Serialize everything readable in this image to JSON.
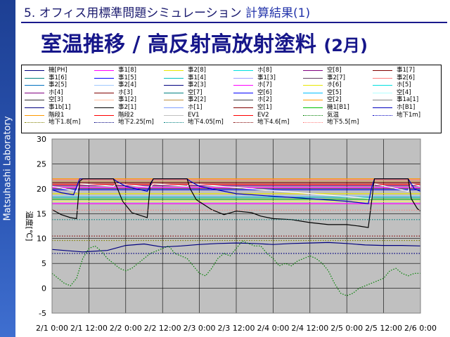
{
  "sidebar": {
    "label": "Matsuhashi Laboratory"
  },
  "header": {
    "number": "5.",
    "section": "オフィス用標準問題シミュレーション",
    "subsection": "計算結果(1)"
  },
  "page_title": {
    "main": "室温推移 / 高反射高放射塗料",
    "sub": "(2月)"
  },
  "chart_data": {
    "type": "line",
    "ylabel": "温度[℃]",
    "ylim": [
      -5,
      30
    ],
    "yticks": [
      -5,
      0,
      5,
      10,
      15,
      20,
      25,
      30
    ],
    "xlim": [
      0,
      120
    ],
    "xticks": [
      0,
      12,
      24,
      36,
      48,
      60,
      72,
      84,
      96,
      108,
      120
    ],
    "xtick_labels": [
      "2/1 0:00",
      "2/1 12:00",
      "2/2 0:00",
      "2/2 12:00",
      "2/3 0:00",
      "2/3 12:00",
      "2/4 0:00",
      "2/4 12:00",
      "2/5 0:00",
      "2/5 12:00",
      "2/6 0:00"
    ],
    "plot_background": "#c0c0c0",
    "grid": true,
    "legend": [
      {
        "name": "機[PH]",
        "color": "#000080",
        "dash": "solid"
      },
      {
        "name": "事1[8]",
        "color": "#ff00ff",
        "dash": "solid"
      },
      {
        "name": "事2[8]",
        "color": "#e8e800",
        "dash": "solid"
      },
      {
        "name": "ホ[8]",
        "color": "#00e0e0",
        "dash": "solid"
      },
      {
        "name": "空[8]",
        "color": "#800080",
        "dash": "solid"
      },
      {
        "name": "事1[7]",
        "color": "#800000",
        "dash": "solid"
      },
      {
        "name": "事1[6]",
        "color": "#008080",
        "dash": "solid"
      },
      {
        "name": "事1[5]",
        "color": "#0000ff",
        "dash": "solid"
      },
      {
        "name": "事1[4]",
        "color": "#00c0c0",
        "dash": "solid"
      },
      {
        "name": "事1[3]",
        "color": "#a0a0ff",
        "dash": "solid"
      },
      {
        "name": "事2[7]",
        "color": "#604060",
        "dash": "solid"
      },
      {
        "name": "事2[6]",
        "color": "#ff7f7f",
        "dash": "solid"
      },
      {
        "name": "事2[5]",
        "color": "#0070c0",
        "dash": "solid"
      },
      {
        "name": "事2[4]",
        "color": "#a0c8ff",
        "dash": "solid"
      },
      {
        "name": "事2[3]",
        "color": "#000080",
        "dash": "solid"
      },
      {
        "name": "ホ[7]",
        "color": "#ff00ff",
        "dash": "solid"
      },
      {
        "name": "ホ[6]",
        "color": "#e8e800",
        "dash": "solid"
      },
      {
        "name": "ホ[5]",
        "color": "#00e0e0",
        "dash": "solid"
      },
      {
        "name": "ホ[4]",
        "color": "#800080",
        "dash": "solid"
      },
      {
        "name": "ホ[3]",
        "color": "#800000",
        "dash": "solid"
      },
      {
        "name": "空[7]",
        "color": "#008080",
        "dash": "solid"
      },
      {
        "name": "空[6]",
        "color": "#0000ff",
        "dash": "solid"
      },
      {
        "name": "空[5]",
        "color": "#00c0ff",
        "dash": "solid"
      },
      {
        "name": "空[4]",
        "color": "#b0ffff",
        "dash": "solid"
      },
      {
        "name": "空[3]",
        "color": "#303030",
        "dash": "solid"
      },
      {
        "name": "事1[2]",
        "color": "#ffc0a0",
        "dash": "solid"
      },
      {
        "name": "事2[2]",
        "color": "#c09040",
        "dash": "solid"
      },
      {
        "name": "ホ[2]",
        "color": "#404040",
        "dash": "solid"
      },
      {
        "name": "空[2]",
        "color": "#ff9900",
        "dash": "solid"
      },
      {
        "name": "事1a[1]",
        "color": "#808080",
        "dash": "solid"
      },
      {
        "name": "事1b[1]",
        "color": "#000080",
        "dash": "solid"
      },
      {
        "name": "事2[1]",
        "color": "#000000",
        "dash": "solid"
      },
      {
        "name": "ホ[1]",
        "color": "#7fa0ff",
        "dash": "solid"
      },
      {
        "name": "空[1]",
        "color": "#800000",
        "dash": "solid"
      },
      {
        "name": "機1[B1]",
        "color": "#00c000",
        "dash": "solid"
      },
      {
        "name": "ホ[B1]",
        "color": "#0000c0",
        "dash": "solid"
      },
      {
        "name": "階段1",
        "color": "#ff9900",
        "dash": "solid"
      },
      {
        "name": "階段2",
        "color": "#ff0000",
        "dash": "solid"
      },
      {
        "name": "EV1",
        "color": "#c0c0c0",
        "dash": "solid"
      },
      {
        "name": "EV2",
        "color": "#ff0000",
        "dash": "solid"
      },
      {
        "name": "気温",
        "color": "#008000",
        "dash": "dotted"
      },
      {
        "name": "地下1m]",
        "color": "#0000c0",
        "dash": "dotted"
      },
      {
        "name": "地下1.8[m]",
        "color": "#808000",
        "dash": "dotted"
      },
      {
        "name": "地下2.25[m]",
        "color": "#000080",
        "dash": "dotted"
      },
      {
        "name": "地下4.05[m]",
        "color": "#008080",
        "dash": "dotted"
      },
      {
        "name": "地下4.6[m]",
        "color": "#800000",
        "dash": "dotted"
      },
      {
        "name": "地下5.5[m]",
        "color": "#ff7f7f",
        "dash": "dotted"
      }
    ],
    "series": [
      {
        "color": "#ff9900",
        "dash": "solid",
        "x": [
          0,
          120
        ],
        "y": [
          22.0,
          22.0
        ]
      },
      {
        "color": "#ff7f7f",
        "dash": "solid",
        "x": [
          0,
          120
        ],
        "y": [
          21.8,
          21.8
        ]
      },
      {
        "color": "#c09040",
        "dash": "solid",
        "x": [
          0,
          120
        ],
        "y": [
          21.5,
          21.5
        ]
      },
      {
        "color": "#800000",
        "dash": "solid",
        "x": [
          0,
          120
        ],
        "y": [
          21.2,
          21.2
        ]
      },
      {
        "color": "#ff0000",
        "dash": "solid",
        "x": [
          0,
          120
        ],
        "y": [
          20.9,
          20.9
        ]
      },
      {
        "color": "#800080",
        "dash": "solid",
        "x": [
          0,
          120
        ],
        "y": [
          20.6,
          20.6
        ]
      },
      {
        "color": "#ff00ff",
        "dash": "solid",
        "x": [
          0,
          120
        ],
        "y": [
          20.2,
          20.2
        ]
      },
      {
        "color": "#0000ff",
        "dash": "solid",
        "x": [
          0,
          120
        ],
        "y": [
          19.8,
          19.8
        ]
      },
      {
        "color": "#e8e800",
        "dash": "solid",
        "x": [
          0,
          120
        ],
        "y": [
          19.0,
          19.0
        ]
      },
      {
        "color": "#a0c8ff",
        "dash": "solid",
        "x": [
          0,
          120
        ],
        "y": [
          18.6,
          18.6
        ]
      },
      {
        "color": "#00c0c0",
        "dash": "solid",
        "x": [
          0,
          120
        ],
        "y": [
          18.3,
          18.3
        ]
      },
      {
        "color": "#00c000",
        "dash": "solid",
        "x": [
          0,
          120
        ],
        "y": [
          17.9,
          17.9
        ]
      },
      {
        "color": "#ffff60",
        "dash": "solid",
        "x": [
          0,
          120
        ],
        "y": [
          17.5,
          17.5
        ]
      },
      {
        "color": "#ff00ff",
        "dash": "solid",
        "x": [
          0,
          120
        ],
        "y": [
          17.0,
          17.0
        ]
      },
      {
        "color": "#ffffff",
        "dash": "solid",
        "x": [
          0,
          8,
          9,
          20,
          21,
          32,
          33,
          44,
          45,
          104,
          105,
          116,
          117,
          120
        ],
        "y": [
          20.5,
          19.5,
          21.0,
          20.5,
          21.0,
          20.3,
          21.0,
          20.5,
          21.0,
          18.0,
          21.0,
          19.5,
          21.0,
          20.5
        ]
      },
      {
        "color": "#0000c0",
        "dash": "solid",
        "x": [
          0,
          3,
          7,
          9,
          12,
          20,
          21,
          24,
          31,
          33,
          36,
          44,
          45,
          48,
          56,
          60,
          72,
          84,
          96,
          103,
          104,
          105,
          106,
          116,
          117,
          118,
          120
        ],
        "y": [
          19.8,
          19.2,
          18.8,
          22.0,
          22.0,
          22.0,
          21.5,
          20.5,
          19.5,
          22.0,
          22.0,
          22.0,
          21.5,
          20.5,
          19.5,
          19.0,
          18.5,
          18.0,
          17.5,
          17.0,
          20.0,
          22.0,
          22.0,
          22.0,
          21.0,
          20.0,
          19.5
        ]
      },
      {
        "color": "#000000",
        "dash": "solid",
        "x": [
          0,
          3,
          6,
          8,
          9,
          10,
          20,
          21,
          23,
          26,
          31,
          32,
          33,
          44,
          45,
          47,
          52,
          56,
          60,
          65,
          68,
          72,
          78,
          84,
          90,
          96,
          100,
          103,
          104,
          105,
          116,
          117,
          119,
          120
        ],
        "y": [
          15.8,
          14.8,
          14.2,
          14.0,
          21.5,
          22.0,
          22.0,
          20.5,
          17.5,
          15.2,
          14.2,
          21.0,
          22.0,
          22.0,
          20.0,
          17.8,
          15.8,
          14.8,
          15.5,
          15.2,
          14.5,
          14.0,
          13.8,
          13.2,
          12.8,
          12.8,
          12.5,
          12.2,
          17.0,
          22.0,
          22.0,
          18.0,
          16.0,
          15.5
        ]
      },
      {
        "color": "#000080",
        "dash": "solid",
        "x": [
          0,
          10,
          18,
          24,
          30,
          36,
          42,
          48,
          54,
          60,
          66,
          72,
          78,
          84,
          90,
          96,
          102,
          108,
          114,
          120
        ],
        "y": [
          7.8,
          7.3,
          7.6,
          8.6,
          8.9,
          8.3,
          8.5,
          8.8,
          9.0,
          9.1,
          9.0,
          8.8,
          9.0,
          9.1,
          9.2,
          9.0,
          8.7,
          8.6,
          8.6,
          8.5
        ]
      },
      {
        "color": "#008000",
        "dash": "dotted",
        "x": [
          0,
          2,
          4,
          6,
          8,
          10,
          12,
          14,
          16,
          18,
          20,
          22,
          24,
          26,
          28,
          30,
          32,
          34,
          36,
          38,
          40,
          42,
          44,
          46,
          48,
          50,
          52,
          54,
          56,
          58,
          60,
          62,
          64,
          66,
          68,
          70,
          72,
          74,
          76,
          78,
          80,
          82,
          84,
          86,
          88,
          90,
          92,
          94,
          96,
          98,
          100,
          102,
          104,
          106,
          108,
          110,
          112,
          114,
          116,
          118,
          120
        ],
        "y": [
          3,
          2,
          1,
          0.5,
          2,
          6,
          8,
          8.5,
          7.5,
          6,
          5,
          4,
          3.5,
          4,
          5,
          6,
          7,
          7.5,
          8,
          8.5,
          7,
          6.5,
          6,
          4.5,
          3,
          2.5,
          4,
          6,
          7,
          6.5,
          8,
          9.5,
          9,
          8.5,
          8.5,
          7,
          6,
          4.5,
          5,
          4.5,
          5.5,
          6,
          6.5,
          6,
          5,
          3.5,
          1,
          -1,
          -1.5,
          -1,
          0,
          0.5,
          1,
          1.5,
          2,
          3.5,
          4,
          3,
          2.5,
          3,
          3
        ]
      },
      {
        "color": "#800000",
        "dash": "dotted",
        "x": [
          0,
          120
        ],
        "y": [
          10.5,
          10.5
        ]
      },
      {
        "color": "#808000",
        "dash": "dotted",
        "x": [
          0,
          120
        ],
        "y": [
          9.6,
          9.6
        ]
      },
      {
        "color": "#000080",
        "dash": "dotted",
        "x": [
          0,
          120
        ],
        "y": [
          7.0,
          7.0
        ]
      },
      {
        "color": "#008080",
        "dash": "dotted",
        "x": [
          0,
          120
        ],
        "y": [
          13.8,
          13.8
        ]
      },
      {
        "color": "#ff7f7f",
        "dash": "dotted",
        "x": [
          0,
          120
        ],
        "y": [
          15.7,
          15.7
        ]
      }
    ]
  }
}
